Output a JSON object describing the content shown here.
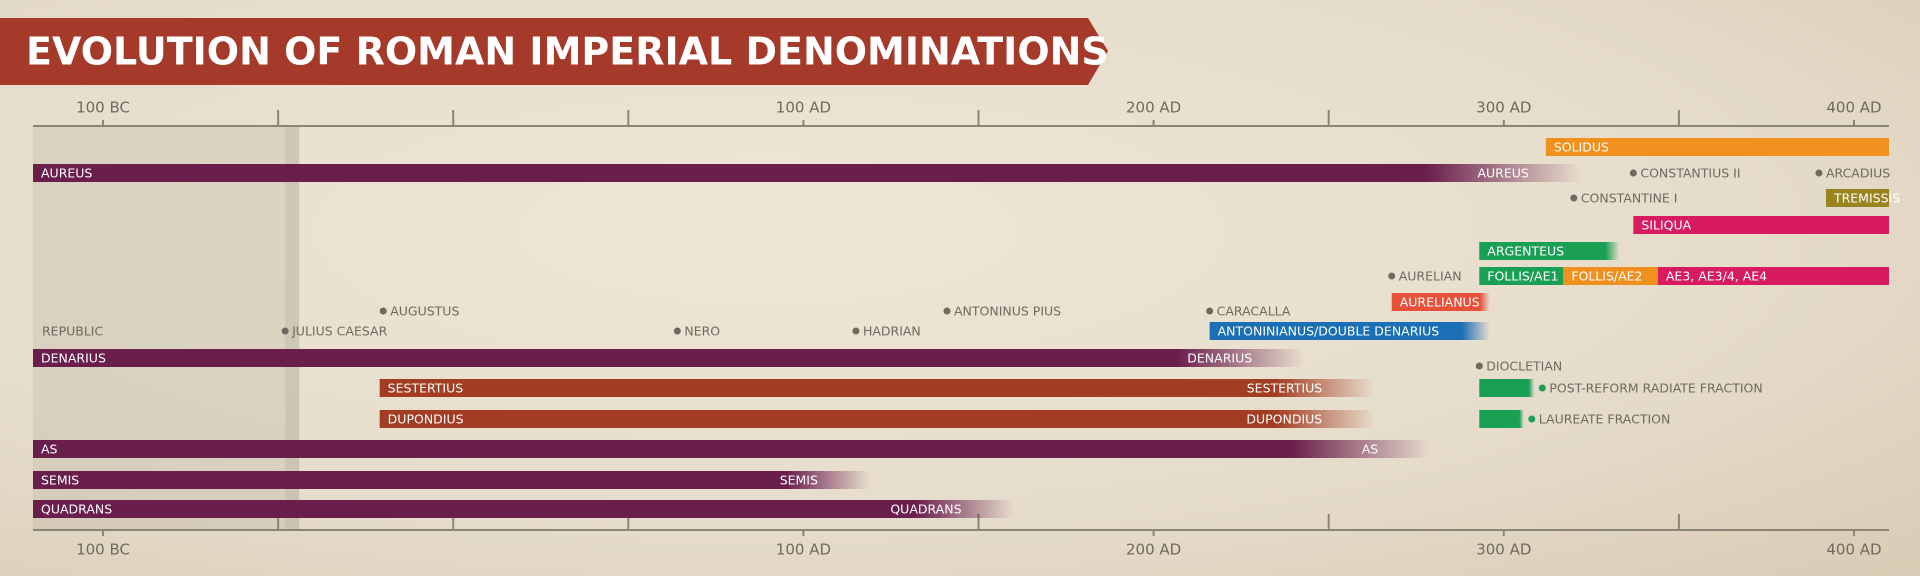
{
  "chart_data": {
    "type": "timeline",
    "title": "EVOLUTION OF ROMAN IMPERIAL DENOMINATIONS",
    "xlim": [
      -120,
      410
    ],
    "xticks": [
      {
        "value": -100,
        "label": "100 BC"
      },
      {
        "value": 100,
        "label": "100 AD"
      },
      {
        "value": 200,
        "label": "200 AD"
      },
      {
        "value": 300,
        "label": "300 AD"
      },
      {
        "value": 400,
        "label": "400 AD"
      }
    ],
    "minor_xticks": [
      -50,
      0,
      50,
      150,
      250,
      350
    ],
    "shade_end": -44,
    "period_label": "REPUBLIC",
    "rows": [
      {
        "bars": [
          {
            "name": "SOLIDUS",
            "start": 312,
            "end": 410,
            "color": "#f0901e"
          }
        ],
        "markers": []
      },
      {
        "bars": [
          {
            "name": "AUREUS",
            "start": -120,
            "end": 322,
            "color": "#6a1e4c",
            "fade_out": true,
            "end_label": true
          }
        ],
        "markers": [
          {
            "name": "CONSTANTIUS II",
            "x": 337
          },
          {
            "name": "ARCADIUS",
            "x": 390
          }
        ]
      },
      {
        "bars": [
          {
            "name": "TREMISSIS",
            "start": 392,
            "end": 410,
            "color": "#9a8420"
          }
        ],
        "markers": [
          {
            "name": "CONSTANTINE I",
            "x": 320
          }
        ]
      },
      {
        "bars": [
          {
            "name": "SILIQUA",
            "start": 337,
            "end": 410,
            "color": "#d81b60"
          }
        ],
        "markers": []
      },
      {
        "bars": [
          {
            "name": "ARGENTEUS",
            "start": 293,
            "end": 333,
            "color": "#1aa055",
            "fade_out": true
          }
        ],
        "markers": []
      },
      {
        "bars": [
          {
            "name": "FOLLIS/AE1",
            "start": 293,
            "end": 317,
            "color": "#1aa055"
          },
          {
            "name": "FOLLIS/AE2",
            "start": 317,
            "end": 344,
            "color": "#f0901e"
          },
          {
            "name": "AE3, AE3/4, AE4",
            "start": 344,
            "end": 410,
            "color": "#d81b60"
          }
        ],
        "markers": [
          {
            "name": "AURELIAN",
            "x": 268
          }
        ]
      },
      {
        "bars": [
          {
            "name": "AURELIANUS",
            "start": 268,
            "end": 296,
            "color": "#e8503a",
            "fade_out": true
          }
        ],
        "markers": []
      },
      {
        "bars": [],
        "markers": [
          {
            "name": "AUGUSTUS",
            "x": -20
          },
          {
            "name": "ANTONINUS PIUS",
            "x": 141
          },
          {
            "name": "CARACALLA",
            "x": 216
          }
        ]
      },
      {
        "bars": [
          {
            "name": "ANTONINIANUS/DOUBLE DENARIUS",
            "start": 216,
            "end": 296,
            "color": "#1a6fb5",
            "fade_out": true
          }
        ],
        "markers": [
          {
            "name": "JULIUS CAESAR",
            "x": -48
          },
          {
            "name": "NERO",
            "x": 64
          },
          {
            "name": "HADRIAN",
            "x": 115
          }
        ]
      },
      {
        "bars": [
          {
            "name": "DENARIUS",
            "start": -120,
            "end": 243,
            "color": "#6a1e4c",
            "fade_out": true,
            "end_label": true
          }
        ],
        "markers": []
      },
      {
        "bars": [],
        "markers": [
          {
            "name": "DIOCLETIAN",
            "x": 293
          }
        ]
      },
      {
        "bars": [
          {
            "name": "SESTERTIUS",
            "start": -21,
            "end": 263,
            "color": "#a23c22",
            "fade_out": true,
            "end_label": true
          }
        ],
        "markers": [
          {
            "name": "POST-REFORM RADIATE FRACTION",
            "x": 311,
            "color": "#1aa055",
            "bar_start": 293
          }
        ]
      },
      {
        "bars": [
          {
            "name": "DUPONDIUS",
            "start": -21,
            "end": 263,
            "color": "#a23c22",
            "fade_out": true,
            "end_label": true
          }
        ],
        "markers": [
          {
            "name": "LAUREATE FRACTION",
            "x": 308,
            "color": "#1aa055",
            "bar_start": 293
          }
        ]
      },
      {
        "bars": [
          {
            "name": "AS",
            "start": -120,
            "end": 279,
            "color": "#6a1e4c",
            "fade_out": true,
            "end_label": true
          }
        ],
        "markers": []
      },
      {
        "bars": [
          {
            "name": "SEMIS",
            "start": -120,
            "end": 119,
            "color": "#6a1e4c",
            "fade_out": true,
            "end_label": true
          }
        ],
        "markers": []
      },
      {
        "bars": [
          {
            "name": "QUADRANS",
            "start": -120,
            "end": 160,
            "color": "#6a1e4c",
            "fade_out": true,
            "end_label": true
          }
        ],
        "markers": []
      }
    ]
  }
}
